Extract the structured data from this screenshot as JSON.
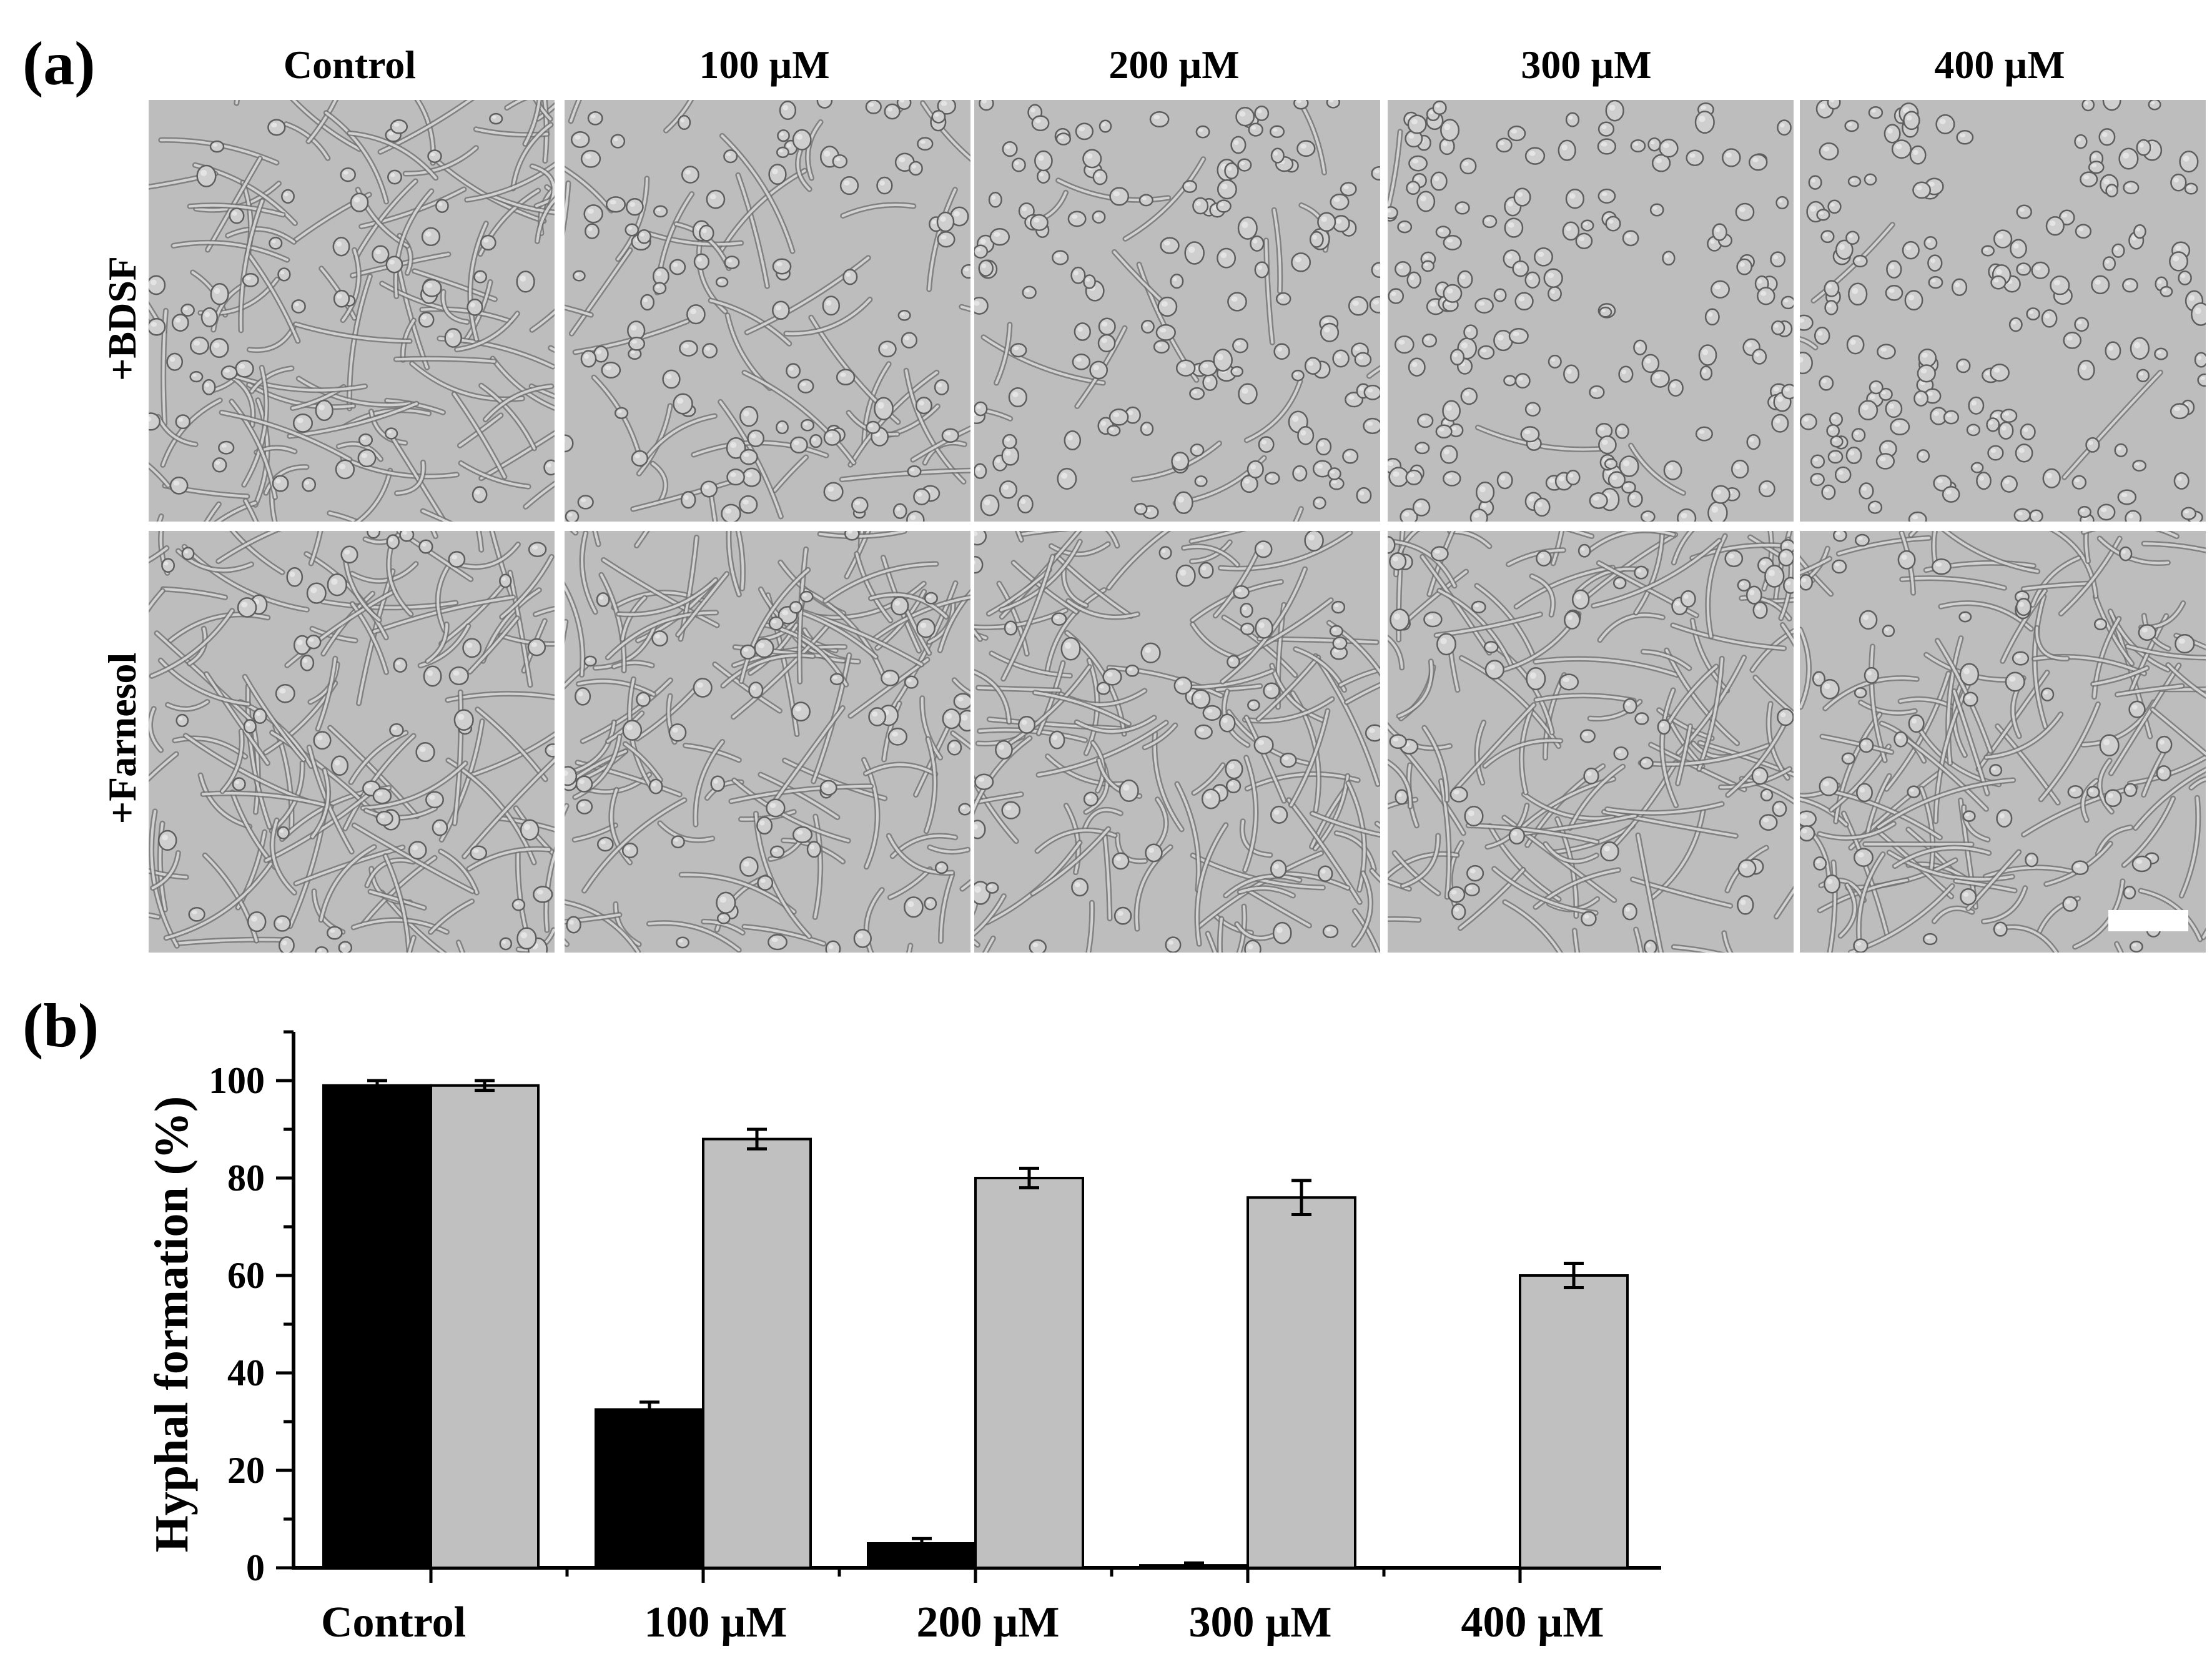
{
  "panel_a": {
    "label": "(a)",
    "column_headers": [
      "Control",
      "100 µM",
      "200 µM",
      "300 µM",
      "400 µM"
    ],
    "row_headers": [
      "+BDSF",
      "+Farnesol"
    ]
  },
  "panel_b": {
    "label": "(b)"
  },
  "colors": {
    "bdsf": "#000000",
    "farnesol": "#c0c0c0",
    "micrograph_bg": "#bdbdbd"
  },
  "chart_data": {
    "type": "bar",
    "categories": [
      "Control",
      "100 µM",
      "200 µM",
      "300 µM",
      "400 µM"
    ],
    "series": [
      {
        "values": [
          99,
          32.5,
          5,
          0.5,
          0
        ],
        "errors": [
          1,
          1.5,
          1,
          0.5,
          0
        ]
      },
      {
        "values": [
          99,
          88,
          80,
          76,
          60
        ],
        "errors": [
          1,
          2,
          2,
          3.5,
          2.5
        ]
      }
    ],
    "ylabel": "Hyphal formation (%)",
    "xlabel": "",
    "ylim": [
      0,
      110
    ],
    "yticks": [
      0,
      20,
      40,
      60,
      80,
      100
    ],
    "grid": false
  }
}
